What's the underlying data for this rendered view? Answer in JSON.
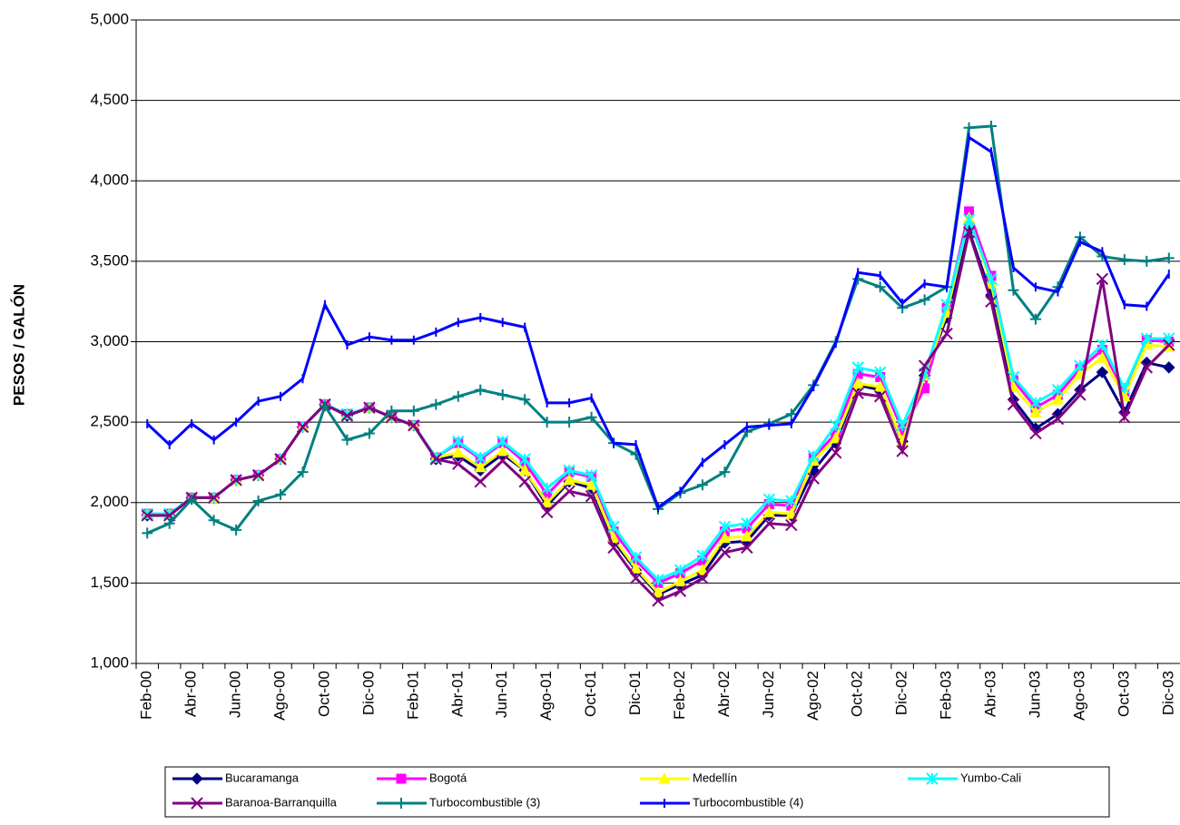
{
  "chart_data": {
    "type": "line",
    "y_label": "PESOS / GALÓN",
    "categories": [
      "Feb-00",
      null,
      "Abr-00",
      null,
      "Jun-00",
      null,
      "Ago-00",
      null,
      "Oct-00",
      null,
      "Dic-00",
      null,
      "Feb-01",
      null,
      "Abr-01",
      null,
      "Jun-01",
      null,
      "Ago-01",
      null,
      "Oct-01",
      null,
      "Dic-01",
      null,
      "Feb-02",
      null,
      "Abr-02",
      null,
      "Jun-02",
      null,
      "Ago-02",
      null,
      "Oct-02",
      null,
      "Dic-02",
      null,
      "Feb-03",
      null,
      "Abr-03",
      null,
      "Jun-03",
      null,
      "Ago-03",
      null,
      "Oct-03",
      null,
      "Dic-03"
    ],
    "ylim": [
      1000,
      5000
    ],
    "yticks": [
      {
        "value": 1000,
        "label": "1,000"
      },
      {
        "value": 1500,
        "label": "1,500"
      },
      {
        "value": 2000,
        "label": "2,000"
      },
      {
        "value": 2500,
        "label": "2,500"
      },
      {
        "value": 3000,
        "label": "3,000"
      },
      {
        "value": 3500,
        "label": "3,500"
      },
      {
        "value": 4000,
        "label": "4,000"
      },
      {
        "value": 4500,
        "label": "4,500"
      },
      {
        "value": 5000,
        "label": "5,000"
      }
    ],
    "grid": true,
    "series": [
      {
        "name": "Bucaramanga",
        "color": "#000080",
        "marker": "diamond",
        "values": [
          1920,
          1920,
          2030,
          2030,
          2140,
          2170,
          2270,
          2470,
          2610,
          2540,
          2590,
          2530,
          2480,
          2270,
          2290,
          2200,
          2300,
          2200,
          1980,
          2130,
          2090,
          1760,
          1580,
          1430,
          1490,
          1550,
          1750,
          1760,
          1920,
          1920,
          2200,
          2370,
          2730,
          2700,
          2380,
          2790,
          3150,
          3690,
          3290,
          2640,
          2460,
          2550,
          2700,
          2810,
          2560,
          2870,
          2840
        ]
      },
      {
        "name": "Bogotá",
        "color": "#FF00FF",
        "marker": "square",
        "values": [
          1930,
          1930,
          2030,
          2030,
          2140,
          2170,
          2270,
          2470,
          2610,
          2550,
          2590,
          2530,
          2480,
          2280,
          2370,
          2270,
          2370,
          2250,
          2050,
          2190,
          2160,
          1820,
          1640,
          1500,
          1560,
          1640,
          1820,
          1840,
          1990,
          1980,
          2280,
          2430,
          2800,
          2780,
          2450,
          2710,
          3210,
          3810,
          3410,
          2760,
          2590,
          2670,
          2830,
          2950,
          2690,
          3010,
          3000
        ]
      },
      {
        "name": "Medellín",
        "color": "#FFFF00",
        "marker": "triangle",
        "values": [
          1930,
          1930,
          2030,
          2030,
          2140,
          2170,
          2270,
          2470,
          2610,
          2550,
          2590,
          2530,
          2480,
          2280,
          2310,
          2220,
          2320,
          2200,
          2000,
          2140,
          2110,
          1780,
          1590,
          1440,
          1510,
          1580,
          1780,
          1790,
          1940,
          1930,
          2260,
          2400,
          2740,
          2720,
          2380,
          2790,
          3180,
          3770,
          3360,
          2720,
          2560,
          2640,
          2800,
          2900,
          2660,
          2980,
          2970
        ]
      },
      {
        "name": "Yumbo-Cali",
        "color": "#00FFFF",
        "marker": "xstar",
        "values": [
          1930,
          1930,
          2030,
          2030,
          2140,
          2170,
          2270,
          2470,
          2610,
          2550,
          2590,
          2530,
          2480,
          2280,
          2380,
          2280,
          2380,
          2270,
          2090,
          2200,
          2170,
          1850,
          1660,
          1520,
          1580,
          1670,
          1850,
          1870,
          2020,
          2010,
          2290,
          2480,
          2840,
          2810,
          2480,
          2800,
          3230,
          3760,
          3390,
          2780,
          2620,
          2700,
          2850,
          2980,
          2710,
          3020,
          3020
        ]
      },
      {
        "name": "Baranoa-Barranquilla",
        "color": "#800080",
        "marker": "star",
        "values": [
          1920,
          1920,
          2030,
          2030,
          2140,
          2170,
          2270,
          2470,
          2610,
          2540,
          2590,
          2530,
          2480,
          2270,
          2240,
          2130,
          2260,
          2130,
          1940,
          2070,
          2040,
          1720,
          1530,
          1390,
          1450,
          1530,
          1690,
          1720,
          1870,
          1860,
          2150,
          2310,
          2680,
          2660,
          2320,
          2850,
          3050,
          3680,
          3250,
          2610,
          2430,
          2520,
          2670,
          3390,
          2530,
          2840,
          2980
        ]
      },
      {
        "name": "Turbocombustible (3)",
        "color": "#008080",
        "marker": "plus",
        "values": [
          1810,
          1870,
          2020,
          1890,
          1830,
          2010,
          2050,
          2190,
          2600,
          2390,
          2430,
          2570,
          2570,
          2610,
          2660,
          2700,
          2670,
          2640,
          2500,
          2500,
          2530,
          2370,
          2300,
          1960,
          2060,
          2110,
          2190,
          2440,
          2490,
          2550,
          2730,
          3000,
          3390,
          3340,
          3210,
          3260,
          3340,
          4330,
          4340,
          3320,
          3140,
          3340,
          3650,
          3530,
          3510,
          3500,
          3520
        ]
      },
      {
        "name": "Turbocombustible (4)",
        "color": "#0000FF",
        "marker": "dash",
        "values": [
          2490,
          2360,
          2490,
          2390,
          2500,
          2630,
          2660,
          2770,
          3230,
          2980,
          3030,
          3010,
          3010,
          3060,
          3120,
          3150,
          3120,
          3090,
          2620,
          2620,
          2650,
          2370,
          2360,
          1970,
          2070,
          2250,
          2360,
          2470,
          2480,
          2490,
          2720,
          2990,
          3430,
          3410,
          3240,
          3360,
          3340,
          4270,
          4180,
          3460,
          3340,
          3310,
          3620,
          3560,
          3230,
          3220,
          3420
        ]
      }
    ]
  }
}
